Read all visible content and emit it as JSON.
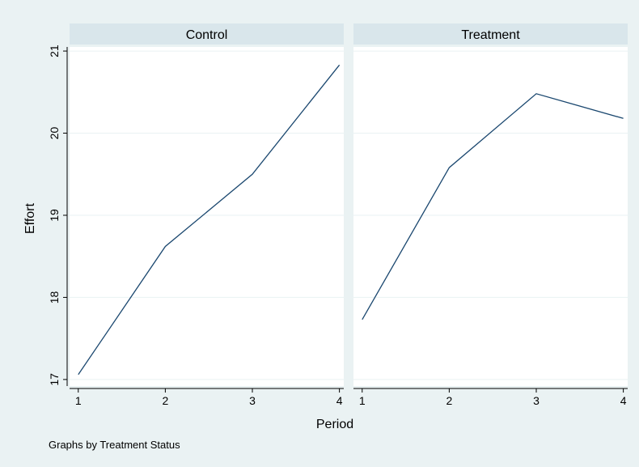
{
  "chart_data": {
    "type": "line",
    "xlabel": "Period",
    "ylabel": "Effort",
    "note": "Graphs by Treatment Status",
    "x_ticks": [
      1,
      2,
      3,
      4
    ],
    "y_ticks": [
      17,
      18,
      19,
      20,
      21
    ],
    "xlim": [
      0.9,
      4.05
    ],
    "ylim": [
      16.92,
      21.05
    ],
    "grid": true,
    "line_color": "#1a476f",
    "panels": [
      {
        "title": "Control",
        "x": [
          1,
          2,
          3,
          4
        ],
        "y": [
          17.06,
          18.62,
          19.5,
          20.83
        ]
      },
      {
        "title": "Treatment",
        "x": [
          1,
          2,
          3,
          4
        ],
        "y": [
          17.73,
          19.58,
          20.48,
          20.18
        ]
      }
    ]
  }
}
